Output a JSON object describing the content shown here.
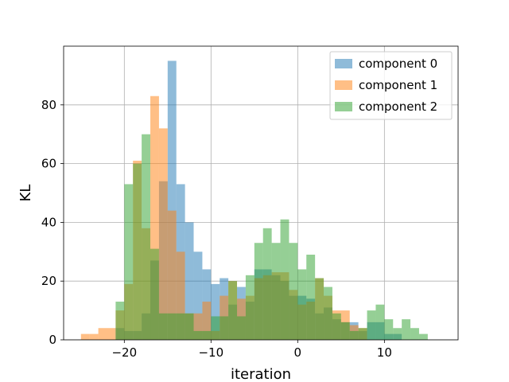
{
  "chart_data": {
    "type": "histogram",
    "xlabel": "iteration",
    "ylabel": "KL",
    "xlim": [
      -27,
      18.5
    ],
    "ylim": [
      0,
      100
    ],
    "xticks": [
      -20,
      -10,
      0,
      10
    ],
    "yticks": [
      0,
      20,
      40,
      60,
      80
    ],
    "grid": true,
    "legend_position": "top-right",
    "series": [
      {
        "name": "component 0",
        "color": "#1f77b4",
        "opacity": 0.5,
        "bins": [
          {
            "x0": -21,
            "x1": -20,
            "value": 4
          },
          {
            "x0": -20,
            "x1": -19,
            "value": 3
          },
          {
            "x0": -19,
            "x1": -18,
            "value": 3
          },
          {
            "x0": -18,
            "x1": -17,
            "value": 9
          },
          {
            "x0": -17,
            "x1": -16,
            "value": 27
          },
          {
            "x0": -16,
            "x1": -15,
            "value": 54
          },
          {
            "x0": -15,
            "x1": -14,
            "value": 95
          },
          {
            "x0": -14,
            "x1": -13,
            "value": 53
          },
          {
            "x0": -13,
            "x1": -12,
            "value": 40
          },
          {
            "x0": -12,
            "x1": -11,
            "value": 30
          },
          {
            "x0": -11,
            "x1": -10,
            "value": 24
          },
          {
            "x0": -10,
            "x1": -9,
            "value": 19
          },
          {
            "x0": -9,
            "x1": -8,
            "value": 21
          },
          {
            "x0": -8,
            "x1": -7,
            "value": 12
          },
          {
            "x0": -7,
            "x1": -6,
            "value": 18
          },
          {
            "x0": -6,
            "x1": -5,
            "value": 13
          },
          {
            "x0": -5,
            "x1": -4,
            "value": 24
          },
          {
            "x0": -4,
            "x1": -3,
            "value": 24
          },
          {
            "x0": -3,
            "x1": -2,
            "value": 22
          },
          {
            "x0": -2,
            "x1": -1,
            "value": 20
          },
          {
            "x0": -1,
            "x1": 0,
            "value": 15
          },
          {
            "x0": 0,
            "x1": 1,
            "value": 15
          },
          {
            "x0": 1,
            "x1": 2,
            "value": 14
          },
          {
            "x0": 2,
            "x1": 3,
            "value": 9
          },
          {
            "x0": 3,
            "x1": 4,
            "value": 11
          },
          {
            "x0": 4,
            "x1": 5,
            "value": 7
          },
          {
            "x0": 5,
            "x1": 6,
            "value": 6
          },
          {
            "x0": 6,
            "x1": 7,
            "value": 6
          },
          {
            "x0": 7,
            "x1": 8,
            "value": 3
          },
          {
            "x0": 8,
            "x1": 9,
            "value": 6
          },
          {
            "x0": 9,
            "x1": 10,
            "value": 6
          },
          {
            "x0": 10,
            "x1": 11,
            "value": 2
          },
          {
            "x0": 11,
            "x1": 12,
            "value": 2
          }
        ]
      },
      {
        "name": "component 1",
        "color": "#ff7f0e",
        "opacity": 0.5,
        "bins": [
          {
            "x0": -25,
            "x1": -24,
            "value": 2
          },
          {
            "x0": -24,
            "x1": -23,
            "value": 2
          },
          {
            "x0": -23,
            "x1": -22,
            "value": 4
          },
          {
            "x0": -22,
            "x1": -21,
            "value": 4
          },
          {
            "x0": -21,
            "x1": -20,
            "value": 10
          },
          {
            "x0": -20,
            "x1": -19,
            "value": 19
          },
          {
            "x0": -19,
            "x1": -18,
            "value": 61
          },
          {
            "x0": -18,
            "x1": -17,
            "value": 38
          },
          {
            "x0": -17,
            "x1": -16,
            "value": 83
          },
          {
            "x0": -16,
            "x1": -15,
            "value": 72
          },
          {
            "x0": -15,
            "x1": -14,
            "value": 44
          },
          {
            "x0": -14,
            "x1": -13,
            "value": 30
          },
          {
            "x0": -13,
            "x1": -12,
            "value": 9
          },
          {
            "x0": -12,
            "x1": -11,
            "value": 9
          },
          {
            "x0": -11,
            "x1": -10,
            "value": 13
          },
          {
            "x0": -10,
            "x1": -9,
            "value": 3
          },
          {
            "x0": -9,
            "x1": -8,
            "value": 15
          },
          {
            "x0": -8,
            "x1": -7,
            "value": 20
          },
          {
            "x0": -7,
            "x1": -6,
            "value": 14
          },
          {
            "x0": -6,
            "x1": -5,
            "value": 15
          },
          {
            "x0": -5,
            "x1": -4,
            "value": 21
          },
          {
            "x0": -4,
            "x1": -3,
            "value": 22
          },
          {
            "x0": -3,
            "x1": -2,
            "value": 23
          },
          {
            "x0": -2,
            "x1": -1,
            "value": 23
          },
          {
            "x0": -1,
            "x1": 0,
            "value": 17
          },
          {
            "x0": 0,
            "x1": 1,
            "value": 12
          },
          {
            "x0": 1,
            "x1": 2,
            "value": 13
          },
          {
            "x0": 2,
            "x1": 3,
            "value": 21
          },
          {
            "x0": 3,
            "x1": 4,
            "value": 15
          },
          {
            "x0": 4,
            "x1": 5,
            "value": 10
          },
          {
            "x0": 5,
            "x1": 6,
            "value": 10
          },
          {
            "x0": 6,
            "x1": 7,
            "value": 5
          },
          {
            "x0": 7,
            "x1": 8,
            "value": 4
          }
        ]
      },
      {
        "name": "component 2",
        "color": "#2ca02c",
        "opacity": 0.5,
        "bins": [
          {
            "x0": -21,
            "x1": -20,
            "value": 13
          },
          {
            "x0": -20,
            "x1": -19,
            "value": 53
          },
          {
            "x0": -19,
            "x1": -18,
            "value": 60
          },
          {
            "x0": -18,
            "x1": -17,
            "value": 70
          },
          {
            "x0": -17,
            "x1": -16,
            "value": 31
          },
          {
            "x0": -16,
            "x1": -15,
            "value": 9
          },
          {
            "x0": -15,
            "x1": -14,
            "value": 9
          },
          {
            "x0": -14,
            "x1": -13,
            "value": 9
          },
          {
            "x0": -13,
            "x1": -12,
            "value": 9
          },
          {
            "x0": -12,
            "x1": -11,
            "value": 3
          },
          {
            "x0": -11,
            "x1": -10,
            "value": 3
          },
          {
            "x0": -10,
            "x1": -9,
            "value": 8
          },
          {
            "x0": -9,
            "x1": -8,
            "value": 8
          },
          {
            "x0": -8,
            "x1": -7,
            "value": 20
          },
          {
            "x0": -7,
            "x1": -6,
            "value": 8
          },
          {
            "x0": -6,
            "x1": -5,
            "value": 22
          },
          {
            "x0": -5,
            "x1": -4,
            "value": 33
          },
          {
            "x0": -4,
            "x1": -3,
            "value": 38
          },
          {
            "x0": -3,
            "x1": -2,
            "value": 33
          },
          {
            "x0": -2,
            "x1": -1,
            "value": 41
          },
          {
            "x0": -1,
            "x1": 0,
            "value": 33
          },
          {
            "x0": 0,
            "x1": 1,
            "value": 24
          },
          {
            "x0": 1,
            "x1": 2,
            "value": 29
          },
          {
            "x0": 2,
            "x1": 3,
            "value": 21
          },
          {
            "x0": 3,
            "x1": 4,
            "value": 18
          },
          {
            "x0": 4,
            "x1": 5,
            "value": 9
          },
          {
            "x0": 5,
            "x1": 6,
            "value": 6
          },
          {
            "x0": 6,
            "x1": 7,
            "value": 3
          },
          {
            "x0": 7,
            "x1": 8,
            "value": 4
          },
          {
            "x0": 8,
            "x1": 9,
            "value": 10
          },
          {
            "x0": 9,
            "x1": 10,
            "value": 12
          },
          {
            "x0": 10,
            "x1": 11,
            "value": 7
          },
          {
            "x0": 11,
            "x1": 12,
            "value": 4
          },
          {
            "x0": 12,
            "x1": 13,
            "value": 7
          },
          {
            "x0": 13,
            "x1": 14,
            "value": 4
          },
          {
            "x0": 14,
            "x1": 15,
            "value": 2
          }
        ]
      }
    ]
  }
}
